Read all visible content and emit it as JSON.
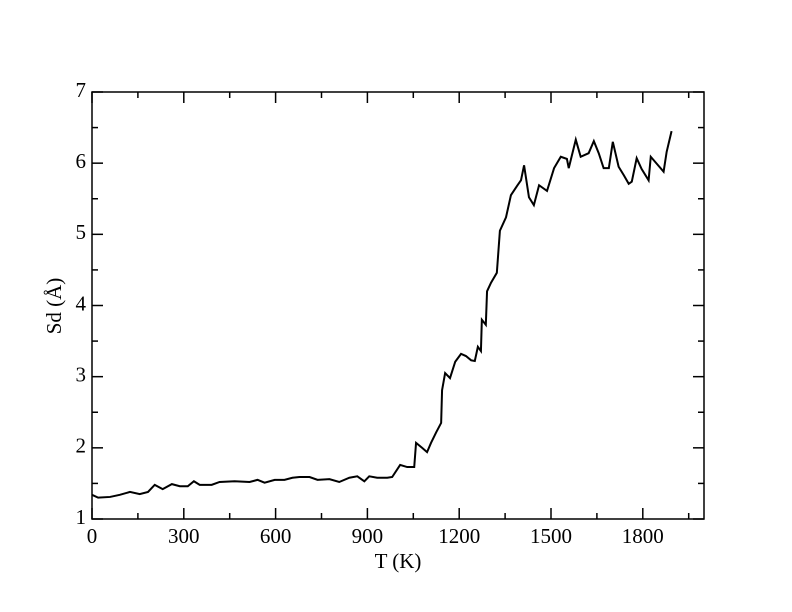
{
  "chart_data": {
    "type": "line",
    "xlabel": "T (K)",
    "ylabel": "Sd (Å)",
    "xlim": [
      0,
      2000
    ],
    "xticks": [
      0,
      300,
      600,
      900,
      1200,
      1500,
      1800
    ],
    "xminorticks": [
      150,
      450,
      750,
      1050,
      1350,
      1650,
      1950
    ],
    "ylim": [
      1,
      7
    ],
    "yticks": [
      1,
      2,
      3,
      4,
      5,
      6,
      7
    ],
    "yminorticks": [
      1.5,
      2.5,
      3.5,
      4.5,
      5.5,
      6.5
    ],
    "grid": false,
    "series": [
      {
        "color": "#000000",
        "x": [
          0,
          20,
          59,
          91,
          124,
          156,
          183,
          205,
          231,
          261,
          287,
          313,
          333,
          352,
          391,
          417,
          466,
          515,
          541,
          564,
          597,
          629,
          655,
          678,
          711,
          737,
          776,
          808,
          841,
          867,
          890,
          906,
          932,
          965,
          981,
          1007,
          1030,
          1053,
          1059,
          1079,
          1095,
          1108,
          1125,
          1141,
          1144,
          1154,
          1170,
          1187,
          1206,
          1222,
          1239,
          1251,
          1261,
          1271,
          1274,
          1287,
          1291,
          1304,
          1323,
          1333,
          1353,
          1369,
          1389,
          1402,
          1412,
          1428,
          1444,
          1461,
          1487,
          1510,
          1532,
          1552,
          1558,
          1581,
          1597,
          1623,
          1640,
          1656,
          1672,
          1689,
          1702,
          1721,
          1738,
          1754,
          1764,
          1780,
          1796,
          1819,
          1826,
          1852,
          1868,
          1878,
          1894
        ],
        "values": [
          1.34,
          1.3,
          1.31,
          1.34,
          1.38,
          1.35,
          1.38,
          1.48,
          1.42,
          1.49,
          1.46,
          1.46,
          1.53,
          1.48,
          1.48,
          1.52,
          1.53,
          1.52,
          1.55,
          1.51,
          1.55,
          1.55,
          1.58,
          1.59,
          1.59,
          1.55,
          1.56,
          1.52,
          1.58,
          1.6,
          1.53,
          1.6,
          1.58,
          1.58,
          1.59,
          1.76,
          1.73,
          1.73,
          2.07,
          2.0,
          1.94,
          2.07,
          2.22,
          2.35,
          2.81,
          3.05,
          2.98,
          3.21,
          3.32,
          3.29,
          3.23,
          3.22,
          3.42,
          3.36,
          3.8,
          3.73,
          4.2,
          4.32,
          4.46,
          5.05,
          5.24,
          5.55,
          5.68,
          5.76,
          5.97,
          5.52,
          5.41,
          5.69,
          5.61,
          5.93,
          6.09,
          6.06,
          5.93,
          6.33,
          6.09,
          6.14,
          6.31,
          6.14,
          5.93,
          5.93,
          6.3,
          5.95,
          5.83,
          5.71,
          5.74,
          6.07,
          5.92,
          5.76,
          6.09,
          5.96,
          5.88,
          6.16,
          6.45
        ]
      }
    ]
  }
}
